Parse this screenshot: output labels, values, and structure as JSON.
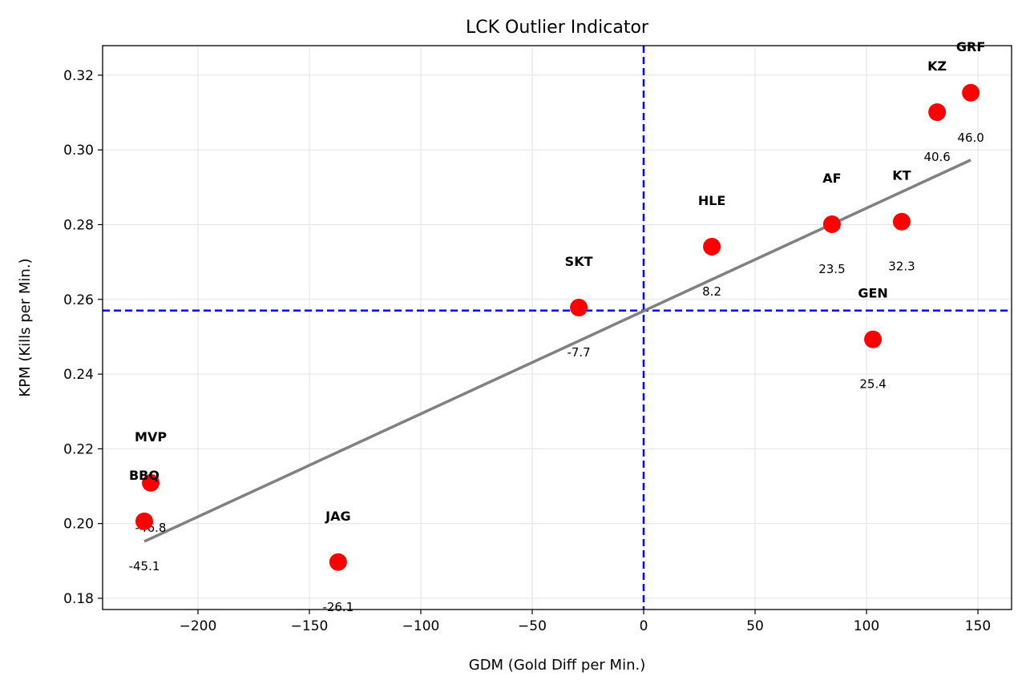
{
  "chart_data": {
    "type": "scatter",
    "title": "LCK Outlier Indicator",
    "xlabel": "GDM (Gold Diff per Min.)",
    "ylabel": "KPM (Kills per Min.)",
    "xlim": [
      -242.8,
      165.1
    ],
    "ylim": [
      0.177,
      0.3279
    ],
    "xticks": [
      -200,
      -150,
      -100,
      -50,
      0,
      50,
      100,
      150
    ],
    "xtick_labels": [
      "−200",
      "−150",
      "−100",
      "−50",
      "0",
      "50",
      "100",
      "150"
    ],
    "yticks": [
      0.18,
      0.2,
      0.22,
      0.24,
      0.26,
      0.28,
      0.3,
      0.32
    ],
    "ytick_labels": [
      "0.18",
      "0.20",
      "0.22",
      "0.24",
      "0.26",
      "0.28",
      "0.30",
      "0.32"
    ],
    "grid": true,
    "point_color": "#ff0000",
    "points": [
      {
        "team": "GRF",
        "x": 146.8,
        "y": 0.3153,
        "label": "46.0"
      },
      {
        "team": "KZ",
        "x": 131.7,
        "y": 0.3101,
        "label": "40.6"
      },
      {
        "team": "KT",
        "x": 115.8,
        "y": 0.2808,
        "label": "32.3"
      },
      {
        "team": "AF",
        "x": 84.5,
        "y": 0.2801,
        "label": "23.5"
      },
      {
        "team": "GEN",
        "x": 102.9,
        "y": 0.2493,
        "label": "25.4"
      },
      {
        "team": "HLE",
        "x": 30.6,
        "y": 0.2741,
        "label": "8.2"
      },
      {
        "team": "SKT",
        "x": -29.1,
        "y": 0.2578,
        "label": "-7.7"
      },
      {
        "team": "JAG",
        "x": -137.1,
        "y": 0.1897,
        "label": "-26.1"
      },
      {
        "team": "MVP",
        "x": -221.2,
        "y": 0.2109,
        "label": "-46.8"
      },
      {
        "team": "BBQ",
        "x": -224.1,
        "y": 0.2006,
        "label": "-45.1"
      }
    ],
    "trend_line": {
      "color": "#808080",
      "x": [
        -224.1,
        146.8
      ],
      "y": [
        0.1952,
        0.2973
      ]
    },
    "mean_lines": {
      "color": "#0000ff",
      "x": 0.0,
      "y": 0.257
    }
  }
}
